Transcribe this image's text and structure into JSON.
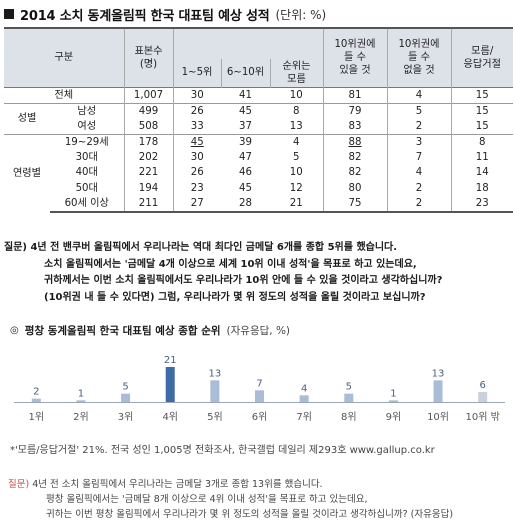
{
  "title": {
    "text": "2014 소치 동계올림픽 한국 대표팀 예상 성적",
    "unit": "(단위: %)"
  },
  "table": {
    "header": {
      "group": "구분",
      "respondents": "표본수\n(명)",
      "top_col": "10위권에\n들 수\n있을 것",
      "within_10": "10위권에\n들 수\n있을 것",
      "not_within_10": "10위권에\n들 수\n없을 것",
      "dont_know": "모름/\n응답거절",
      "rank_1_5": "1~5위",
      "rank_6_10": "6~10위",
      "rank_unknown": "순위는\n모름"
    },
    "rows": [
      {
        "cat": "전체",
        "sub": "",
        "n": "1,007",
        "r15": "30",
        "r610": "41",
        "unk": "10",
        "in10": "81",
        "out10": "4",
        "dk": "15"
      },
      {
        "cat": "성별",
        "sub": "남성",
        "n": "499",
        "r15": "26",
        "r610": "45",
        "unk": "8",
        "in10": "79",
        "out10": "5",
        "dk": "15"
      },
      {
        "cat": "",
        "sub": "여성",
        "n": "508",
        "r15": "33",
        "r610": "37",
        "unk": "13",
        "in10": "83",
        "out10": "2",
        "dk": "15"
      },
      {
        "cat": "",
        "sub": "19~29세",
        "n": "178",
        "r15": "45",
        "r610": "39",
        "unk": "4",
        "in10": "88",
        "out10": "3",
        "dk": "8"
      },
      {
        "cat": "",
        "sub": "30대",
        "n": "202",
        "r15": "30",
        "r610": "47",
        "unk": "5",
        "in10": "82",
        "out10": "7",
        "dk": "11"
      },
      {
        "cat": "연령별",
        "sub": "40대",
        "n": "221",
        "r15": "26",
        "r610": "46",
        "unk": "10",
        "in10": "82",
        "out10": "4",
        "dk": "14"
      },
      {
        "cat": "",
        "sub": "50대",
        "n": "194",
        "r15": "23",
        "r610": "45",
        "unk": "12",
        "in10": "80",
        "out10": "2",
        "dk": "18"
      },
      {
        "cat": "",
        "sub": "60세 이상",
        "n": "211",
        "r15": "27",
        "r610": "28",
        "unk": "21",
        "in10": "75",
        "out10": "2",
        "dk": "23"
      }
    ]
  },
  "question": {
    "label": "질문)",
    "lines": [
      "4년 전 밴쿠버 올림픽에서 우리나라는 역대 최다인 금메달 6개를 종합 5위를 했습니다.",
      "소치 올림픽에서는 '금메달 4개 이상으로 세계 10위 이내 성적'을 목표로 하고 있는데요,",
      "귀하께서는 이번 소치 올림픽에서도 우리나라가 10위 안에 들 수 있을 것이라고 생각하십니까?",
      "(10위권 내 들 수 있다면) 그럼, 우리나라가 몇 위 정도의 성적을 올릴 것이라고 보십니까?"
    ]
  },
  "chart_section": {
    "bullet": "◎",
    "title": "평창 동계올림픽 한국 대표팀 예상 종합 순위",
    "subtitle": "(자유응답, %)"
  },
  "chart_data": {
    "type": "bar",
    "title": "평창 동계올림픽 한국 대표팀 예상 종합 순위 (자유응답, %)",
    "categories": [
      "1위",
      "2위",
      "3위",
      "4위",
      "5위",
      "6위",
      "7위",
      "8위",
      "9위",
      "10위",
      "10위 밖"
    ],
    "values": [
      2,
      1,
      5,
      21,
      13,
      7,
      4,
      5,
      1,
      13,
      6
    ],
    "highlight_index": 3,
    "colors": {
      "bar": "#a9bdd8",
      "highlight": "#3f6aa6",
      "last": "#c8d1de",
      "axis": "#9aa5b5",
      "label": "#4a5f80"
    },
    "ylim": [
      0,
      21
    ]
  },
  "footnote": "*'모름/응답거절' 21%. 전국 성인 1,005명 전화조사, 한국갤럽 데일리 제293호 www.gallup.co.kr",
  "bottom_question": {
    "label": "질문)",
    "lines": [
      "4년 전 소치 올림픽에서 우리나라는 금메달 3개로 종합 13위를 했습니다.",
      "평창 올림픽에서는 '금메달 8개 이상으로 4위 이내 성적'을 목표로 하고 있는데요,",
      "귀하는 이번 평창 올림픽에서 우리나라가 몇 위 정도의 성적을 올릴 것이라고 생각하십니까? (자유응답)"
    ]
  }
}
